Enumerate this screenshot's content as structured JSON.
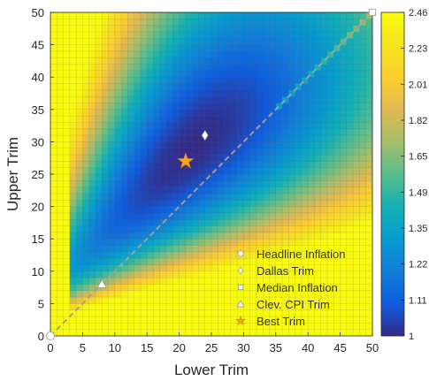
{
  "chart_data": {
    "type": "heatmap",
    "title": "",
    "xlabel": "Lower Trim",
    "ylabel": "Upper Trim",
    "xlim": [
      0,
      50
    ],
    "ylim": [
      0,
      50
    ],
    "x_ticks": [
      0,
      5,
      10,
      15,
      20,
      25,
      30,
      35,
      40,
      45,
      50
    ],
    "y_ticks": [
      0,
      5,
      10,
      15,
      20,
      25,
      30,
      35,
      40,
      45,
      50
    ],
    "grid_step": 1,
    "grid": true,
    "colormap": "parula",
    "colorbar": {
      "min": 1.0,
      "max": 2.48,
      "tick_values": [
        2.46,
        2.23,
        2.01,
        1.82,
        1.65,
        1.49,
        1.35,
        1.22,
        1.11,
        1.0
      ],
      "tick_labels": [
        "2.46",
        "2.23",
        "2.01",
        "1.82",
        "1.65",
        "1.49",
        "1.35",
        "1.22",
        "1.11",
        "1"
      ],
      "scale": "nonlinear"
    },
    "surface": {
      "min_location": [
        22,
        29
      ],
      "min_value": 1.0,
      "saturated_value": 2.48,
      "note_diagonal": "45-degree dashed line from (0,0) to (50,50)"
    },
    "diagonal_line": {
      "from": [
        0,
        0
      ],
      "to": [
        50,
        50
      ],
      "style": "dashed",
      "color": "#a0a0a0"
    },
    "markers": [
      {
        "name": "Headline Inflation",
        "shape": "circle",
        "x": 0,
        "y": 0,
        "color": "#ffffff"
      },
      {
        "name": "Dallas Trim",
        "shape": "diamond",
        "x": 24,
        "y": 31,
        "color": "#ffffff"
      },
      {
        "name": "Median Inflation",
        "shape": "square",
        "x": 50,
        "y": 50,
        "color": "#ffffff"
      },
      {
        "name": "Clev. CPI Trim",
        "shape": "triangle",
        "x": 8,
        "y": 8,
        "color": "#ffffff"
      },
      {
        "name": "Best Trim",
        "shape": "star",
        "x": 21,
        "y": 27,
        "color": "#f5a623"
      }
    ],
    "legend": {
      "placement": "bottom-right",
      "entries": [
        "Headline Inflation",
        "Dallas Trim",
        "Median Inflation",
        "Clev. CPI Trim",
        "Best Trim"
      ]
    }
  }
}
